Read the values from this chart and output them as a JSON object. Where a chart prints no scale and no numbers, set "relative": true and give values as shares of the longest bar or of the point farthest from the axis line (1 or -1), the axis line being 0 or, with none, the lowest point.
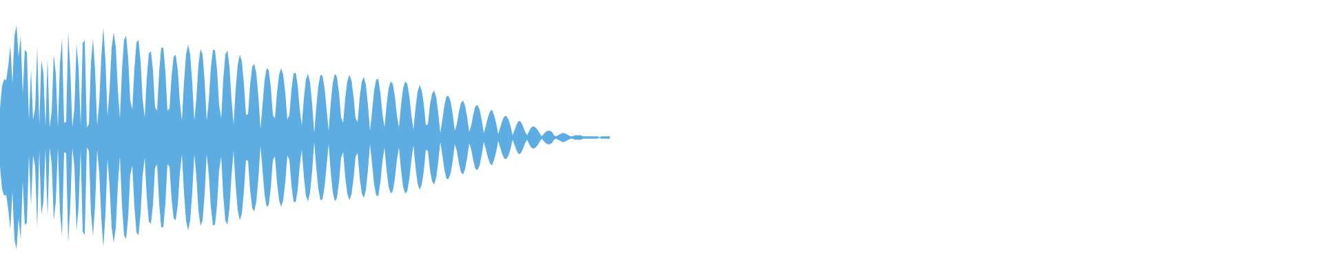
{
  "chart_data": {
    "type": "area",
    "relative": true,
    "categories": [
      null,
      null,
      null,
      null,
      null,
      null,
      null,
      null,
      null,
      null,
      null,
      null,
      null,
      null,
      null,
      null,
      null,
      null,
      null,
      null,
      null,
      null,
      null,
      null,
      null,
      null,
      null,
      null,
      null,
      null,
      null,
      null,
      null,
      null,
      null,
      null,
      null,
      null,
      null,
      null,
      null,
      null,
      null,
      null,
      null,
      null,
      null,
      null,
      null,
      null,
      null,
      null,
      null,
      null,
      null,
      null,
      null,
      null,
      null,
      null,
      null,
      null,
      null,
      null,
      null,
      null,
      null,
      null,
      null,
      null,
      null,
      null,
      null,
      null,
      null,
      null,
      null,
      null,
      null,
      null,
      null,
      null,
      null,
      null,
      null,
      null,
      null,
      null,
      null,
      null,
      null,
      null,
      null,
      null,
      null,
      null,
      null,
      null,
      null,
      null,
      null,
      null,
      null,
      null,
      null,
      null,
      null,
      null,
      null,
      null,
      null,
      null,
      null,
      null,
      null,
      null,
      null,
      null,
      null,
      null,
      null,
      null,
      null,
      null,
      null,
      null,
      null,
      null,
      null,
      null,
      null,
      null,
      null,
      null,
      null,
      null,
      null,
      null,
      null,
      null,
      null,
      null,
      null,
      null,
      null,
      null,
      null,
      null,
      null,
      null,
      null,
      null,
      null,
      null,
      null,
      null,
      null,
      null,
      null,
      null,
      null,
      null,
      null,
      null,
      null,
      null,
      null,
      null,
      null,
      null,
      null,
      null,
      null,
      null,
      null,
      null,
      null,
      null,
      null,
      null,
      null,
      null,
      null,
      null,
      null,
      null,
      null,
      null,
      null,
      null,
      null,
      null,
      null,
      null,
      null,
      null,
      null,
      null,
      null,
      null,
      null,
      null,
      null,
      null,
      null,
      null,
      null,
      null,
      null,
      null,
      null,
      null,
      null,
      null,
      null,
      null,
      null,
      null,
      null,
      null,
      null,
      null,
      null,
      null,
      null,
      null,
      null,
      null,
      null,
      null,
      null,
      null,
      null,
      null,
      null,
      null,
      null,
      null,
      null,
      null,
      null,
      null,
      null,
      null,
      null,
      null,
      null,
      null,
      null,
      null,
      null,
      null,
      null,
      null,
      null,
      null,
      null,
      null,
      null,
      null,
      null,
      null,
      null,
      null,
      null,
      null,
      null,
      null,
      null,
      null,
      null,
      null,
      null,
      null,
      null,
      null,
      null,
      null,
      null,
      null,
      null,
      null,
      null,
      null,
      null,
      null,
      null,
      null,
      null,
      null,
      null,
      null,
      null,
      null,
      null,
      null
    ],
    "series": [
      {
        "color": "#5dade2",
        "values": [
          0.26,
          0.46,
          0.52,
          0.51,
          0.64,
          0.82,
          0.48,
          0.91,
          1,
          0.72,
          0.91,
          0.39,
          0.78,
          0.76,
          0.16,
          0.61,
          0.16,
          0.26,
          0.81,
          0.12,
          0.69,
          0.57,
          0.1,
          0.71,
          0.09,
          0.23,
          0.74,
          0.57,
          0.09,
          0.66,
          0.88,
          0.13,
          0.14,
          0.94,
          0.61,
          0.09,
          0.26,
          0.83,
          0.63,
          0.11,
          0.84,
          0.87,
          0.09,
          0.12,
          0.67,
          0.88,
          0.6,
          0.11,
          0.31,
          0.72,
          0.98,
          0.69,
          0.19,
          0.43,
          0.8,
          0.94,
          0.81,
          0.43,
          0.17,
          0.6,
          0.87,
          0.91,
          0.71,
          0.33,
          0.25,
          0.61,
          0.85,
          0.87,
          0.68,
          0.34,
          0.18,
          0.53,
          0.75,
          0.77,
          0.6,
          0.27,
          0.24,
          0.59,
          0.8,
          0.8,
          0.59,
          0.24,
          0.26,
          0.55,
          0.72,
          0.74,
          0.6,
          0.32,
          0.15,
          0.49,
          0.74,
          0.83,
          0.74,
          0.49,
          0.15,
          0.35,
          0.65,
          0.79,
          0.74,
          0.5,
          0.15,
          0.33,
          0.62,
          0.78,
          0.78,
          0.6,
          0.29,
          0.17,
          0.52,
          0.74,
          0.78,
          0.63,
          0.34,
          0.12,
          0.43,
          0.65,
          0.74,
          0.68,
          0.48,
          0.2,
          0.21,
          0.47,
          0.63,
          0.66,
          0.57,
          0.36,
          0.08,
          0.29,
          0.51,
          0.62,
          0.6,
          0.45,
          0.2,
          0.17,
          0.4,
          0.56,
          0.62,
          0.56,
          0.4,
          0.16,
          0.2,
          0.43,
          0.57,
          0.58,
          0.47,
          0.25,
          0.11,
          0.35,
          0.52,
          0.57,
          0.49,
          0.3,
          0.04,
          0.27,
          0.46,
          0.56,
          0.55,
          0.44,
          0.25,
          0.06,
          0.31,
          0.49,
          0.57,
          0.54,
          0.4,
          0.18,
          0.13,
          0.35,
          0.5,
          0.56,
          0.51,
          0.37,
          0.17,
          0.14,
          0.36,
          0.5,
          0.54,
          0.47,
          0.29,
          0.06,
          0.24,
          0.42,
          0.52,
          0.52,
          0.4,
          0.21,
          0.09,
          0.29,
          0.44,
          0.5,
          0.48,
          0.37,
          0.2,
          0.09,
          0.29,
          0.44,
          0.5,
          0.48,
          0.37,
          0.2,
          0.07,
          0.26,
          0.41,
          0.47,
          0.42,
          0.3,
          0.11,
          0.12,
          0.29,
          0.39,
          0.42,
          0.36,
          0.22,
          0.04,
          0.16,
          0.29,
          0.37,
          0.37,
          0.32,
          0.21,
          0.06,
          0.12,
          0.23,
          0.31,
          0.33,
          0.28,
          0.18,
          0.05,
          0.11,
          0.21,
          0.28,
          0.29,
          0.25,
          0.16,
          0.04,
          0.1,
          0.18,
          0.23,
          0.25,
          0.2,
          0.13,
          0.03,
          0.09,
          0.15,
          0.19,
          0.19,
          0.16,
          0.1,
          0.02,
          0.07,
          0.12,
          0.15,
          0.14,
          0.1,
          0.05,
          0.02,
          0.06,
          0.09,
          0.1,
          0.09,
          0.07,
          0.04,
          0.01,
          0.03,
          0.05,
          0.06,
          0.06,
          0.05,
          0.02,
          0.01,
          0.02,
          0.03,
          0.04,
          0.04,
          0.03,
          0.02,
          0.01,
          0.01,
          0.02,
          0.02,
          0.02,
          0.02,
          0.01,
          0.01,
          0.01,
          0.01,
          0.01,
          0.01,
          0.01,
          0.01,
          0,
          0.01,
          0.01,
          0.01,
          0.01,
          0.01
        ]
      },
      {
        "color": "#5dade2",
        "values": [
          -0.26,
          -0.46,
          -0.52,
          -0.51,
          -0.64,
          -0.82,
          -0.48,
          -0.91,
          -1,
          -0.72,
          -0.91,
          -0.39,
          -0.78,
          -0.76,
          -0.16,
          -0.61,
          -0.16,
          -0.26,
          -0.81,
          -0.12,
          -0.69,
          -0.57,
          -0.1,
          -0.71,
          -0.09,
          -0.23,
          -0.74,
          -0.57,
          -0.09,
          -0.66,
          -0.88,
          -0.13,
          -0.14,
          -0.94,
          -0.61,
          -0.09,
          -0.26,
          -0.83,
          -0.63,
          -0.11,
          -0.84,
          -0.87,
          -0.09,
          -0.12,
          -0.67,
          -0.88,
          -0.6,
          -0.11,
          -0.31,
          -0.72,
          -0.98,
          -0.69,
          -0.19,
          -0.43,
          -0.8,
          -0.94,
          -0.81,
          -0.43,
          -0.17,
          -0.6,
          -0.87,
          -0.91,
          -0.71,
          -0.33,
          -0.25,
          -0.61,
          -0.85,
          -0.87,
          -0.68,
          -0.34,
          -0.18,
          -0.53,
          -0.75,
          -0.77,
          -0.6,
          -0.27,
          -0.24,
          -0.59,
          -0.8,
          -0.8,
          -0.59,
          -0.24,
          -0.26,
          -0.55,
          -0.72,
          -0.74,
          -0.6,
          -0.32,
          -0.15,
          -0.49,
          -0.74,
          -0.83,
          -0.74,
          -0.49,
          -0.15,
          -0.35,
          -0.65,
          -0.79,
          -0.74,
          -0.5,
          -0.15,
          -0.33,
          -0.62,
          -0.78,
          -0.78,
          -0.6,
          -0.29,
          -0.17,
          -0.52,
          -0.74,
          -0.78,
          -0.63,
          -0.34,
          -0.12,
          -0.43,
          -0.65,
          -0.74,
          -0.68,
          -0.48,
          -0.2,
          -0.21,
          -0.47,
          -0.63,
          -0.66,
          -0.57,
          -0.36,
          -0.08,
          -0.29,
          -0.51,
          -0.62,
          -0.6,
          -0.45,
          -0.2,
          -0.17,
          -0.4,
          -0.56,
          -0.62,
          -0.56,
          -0.4,
          -0.16,
          -0.2,
          -0.43,
          -0.57,
          -0.58,
          -0.47,
          -0.25,
          -0.11,
          -0.35,
          -0.52,
          -0.57,
          -0.49,
          -0.3,
          -0.04,
          -0.27,
          -0.46,
          -0.56,
          -0.55,
          -0.44,
          -0.25,
          -0.06,
          -0.31,
          -0.49,
          -0.57,
          -0.54,
          -0.4,
          -0.18,
          -0.13,
          -0.35,
          -0.5,
          -0.56,
          -0.51,
          -0.37,
          -0.17,
          -0.14,
          -0.36,
          -0.5,
          -0.54,
          -0.47,
          -0.29,
          -0.06,
          -0.24,
          -0.42,
          -0.52,
          -0.52,
          -0.4,
          -0.21,
          -0.09,
          -0.29,
          -0.44,
          -0.5,
          -0.48,
          -0.37,
          -0.2,
          -0.09,
          -0.29,
          -0.44,
          -0.5,
          -0.48,
          -0.37,
          -0.2,
          -0.07,
          -0.26,
          -0.41,
          -0.47,
          -0.42,
          -0.3,
          -0.11,
          -0.12,
          -0.29,
          -0.39,
          -0.42,
          -0.36,
          -0.22,
          -0.04,
          -0.16,
          -0.29,
          -0.37,
          -0.37,
          -0.32,
          -0.21,
          -0.06,
          -0.12,
          -0.23,
          -0.31,
          -0.33,
          -0.28,
          -0.18,
          -0.05,
          -0.11,
          -0.21,
          -0.28,
          -0.29,
          -0.25,
          -0.16,
          -0.04,
          -0.1,
          -0.18,
          -0.23,
          -0.25,
          -0.2,
          -0.13,
          -0.03,
          -0.09,
          -0.15,
          -0.19,
          -0.19,
          -0.16,
          -0.1,
          -0.02,
          -0.07,
          -0.12,
          -0.15,
          -0.14,
          -0.1,
          -0.05,
          -0.02,
          -0.06,
          -0.09,
          -0.1,
          -0.09,
          -0.07,
          -0.04,
          -0.01,
          -0.03,
          -0.05,
          -0.06,
          -0.06,
          -0.05,
          -0.02,
          -0.01,
          -0.02,
          -0.03,
          -0.04,
          -0.04,
          -0.03,
          -0.02,
          -0.01,
          -0.01,
          -0.02,
          -0.02,
          -0.02,
          -0.02,
          -0.01,
          -0.01,
          -0.01,
          -0.01,
          -0.01,
          -0.01,
          -0.01,
          -0.01,
          0,
          -0.01,
          -0.01,
          -0.01,
          -0.01,
          -0.01
        ]
      }
    ],
    "ref_lines": [
      {
        "axis": "y",
        "value": 0,
        "color": "#5dade2"
      }
    ]
  }
}
